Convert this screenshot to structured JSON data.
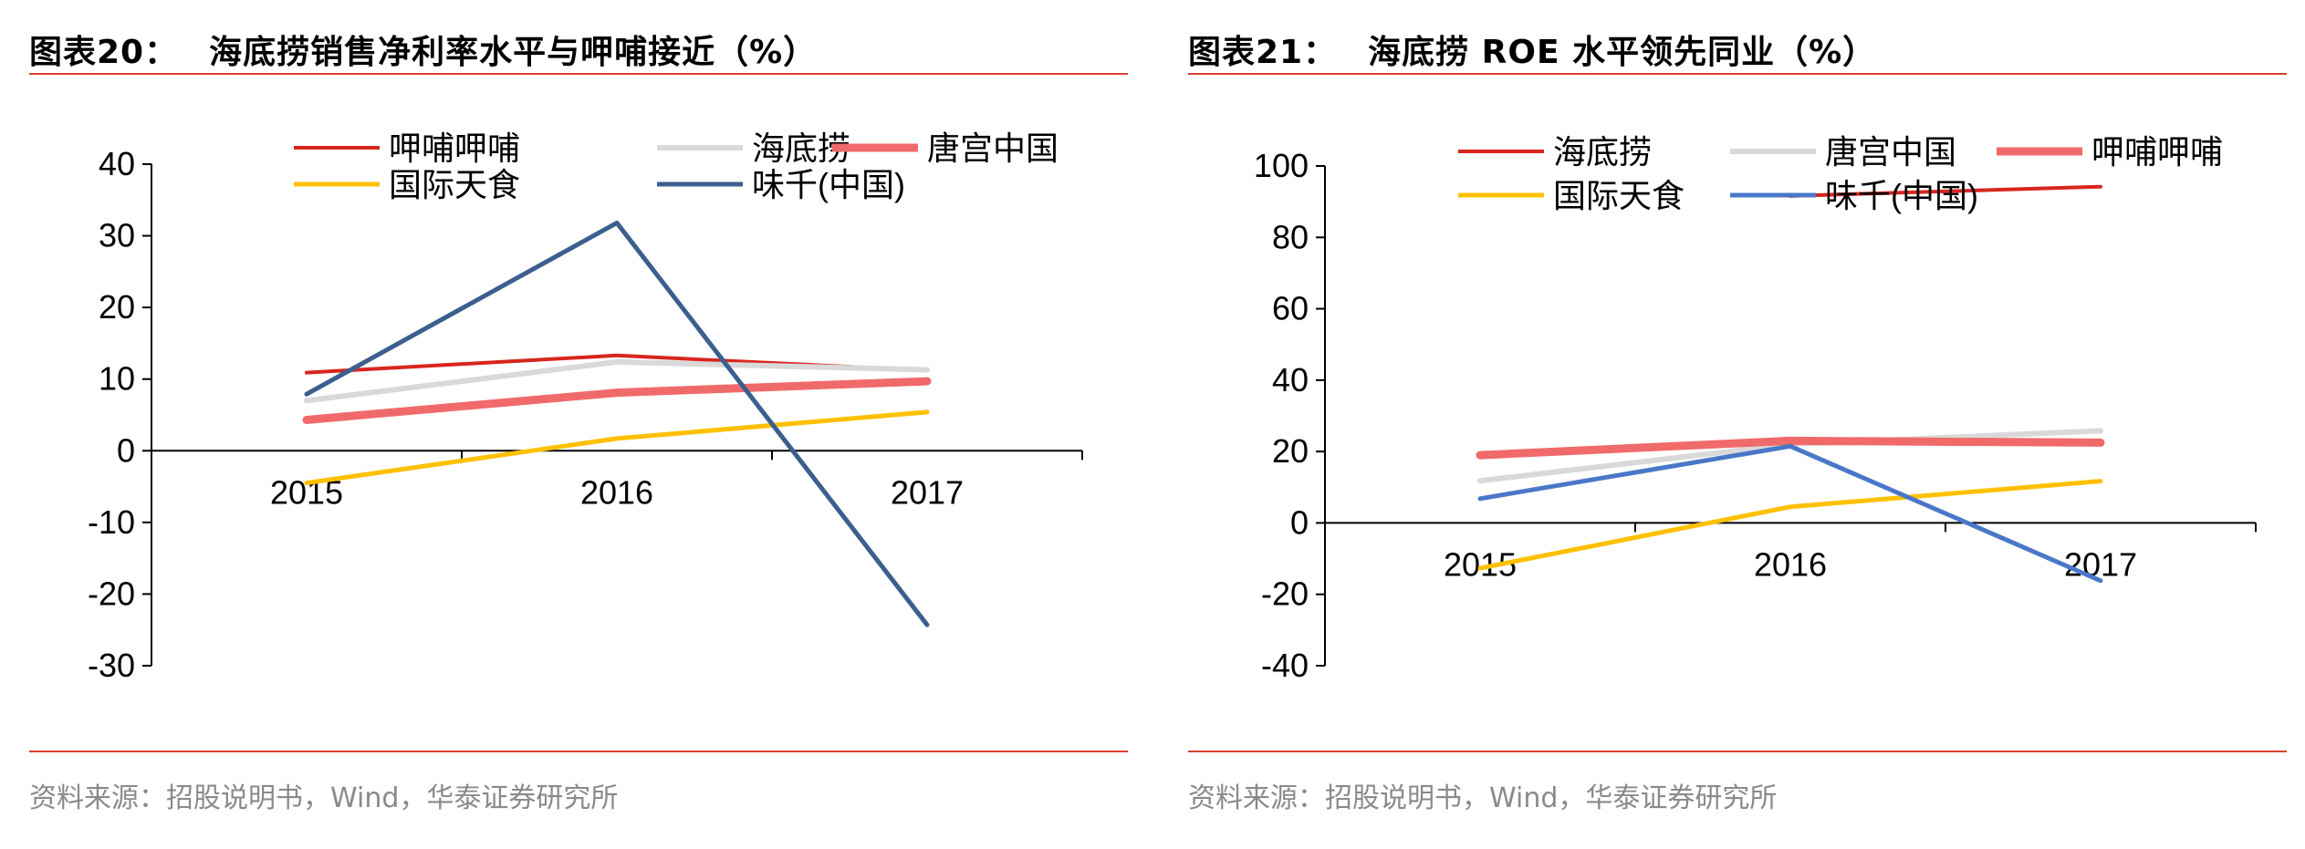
{
  "left": {
    "title_num": "图表20：",
    "title_text": "海底捞销售净利率水平与呷哺接近（%）",
    "source": "资料来源：招股说明书，Wind，华泰证券研究所",
    "chart_data": {
      "type": "line",
      "title": "海底捞销售净利率水平与呷哺接近（%）",
      "categories": [
        "2015",
        "2016",
        "2017"
      ],
      "ylim": [
        -30,
        40
      ],
      "yticks": [
        "40",
        "30",
        "20",
        "10",
        "0",
        "-10",
        "-20",
        "-30"
      ],
      "grid": false,
      "legend_position": "top",
      "series": [
        {
          "name": "呷哺呷哺",
          "color": "#d7261e",
          "width": 4,
          "values": [
            10.9,
            13.3,
            11.2
          ]
        },
        {
          "name": "海底捞",
          "color": "#d9d9d9",
          "width": 6,
          "values": [
            7.0,
            12.4,
            11.3
          ]
        },
        {
          "name": "唐宫中国",
          "color": "#f06a6a",
          "width": 9,
          "values": [
            4.3,
            8.1,
            9.7
          ]
        },
        {
          "name": "国际天食",
          "color": "#ffc000",
          "width": 5,
          "values": [
            -4.5,
            1.7,
            5.4
          ]
        },
        {
          "name": "味千(中国)",
          "color": "#3b5f8e",
          "width": 5,
          "values": [
            7.9,
            31.8,
            -24.3
          ]
        }
      ]
    }
  },
  "right": {
    "title_num": "图表21：",
    "title_text": "海底捞 ROE 水平领先同业（%）",
    "source": "资料来源：招股说明书，Wind，华泰证券研究所",
    "chart_data": {
      "type": "line",
      "title": "海底捞 ROE 水平领先同业（%）",
      "categories": [
        "2015",
        "2016",
        "2017"
      ],
      "ylim": [
        -40,
        100
      ],
      "yticks": [
        "100",
        "80",
        "60",
        "40",
        "20",
        "0",
        "-20",
        "-40"
      ],
      "grid": false,
      "legend_position": "top",
      "series": [
        {
          "name": "海底捞",
          "color": "#d7261e",
          "width": 4,
          "values": [
            null,
            91.6,
            94.2
          ]
        },
        {
          "name": "唐宫中国",
          "color": "#d9d9d9",
          "width": 6,
          "values": [
            11.8,
            22.0,
            25.8
          ]
        },
        {
          "name": "呷哺呷哺",
          "color": "#f06a6a",
          "width": 9,
          "values": [
            19.0,
            23.0,
            22.5
          ]
        },
        {
          "name": "国际天食",
          "color": "#ffc000",
          "width": 5,
          "values": [
            -12.7,
            4.5,
            11.7
          ]
        },
        {
          "name": "味千(中国)",
          "color": "#4a78c8",
          "width": 5,
          "values": [
            6.8,
            21.5,
            -16.2
          ]
        }
      ]
    }
  }
}
